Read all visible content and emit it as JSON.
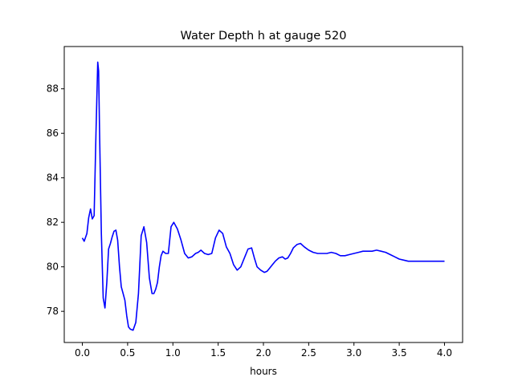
{
  "chart_data": {
    "type": "line",
    "title": "Water Depth h at gauge 520",
    "xlabel": "hours",
    "ylabel": "",
    "xlim": [
      -0.2,
      4.2
    ],
    "ylim": [
      76.6,
      89.9
    ],
    "x_ticks": [
      0.0,
      0.5,
      1.0,
      1.5,
      2.0,
      2.5,
      3.0,
      3.5,
      4.0
    ],
    "x_tick_labels": [
      "0.0",
      "0.5",
      "1.0",
      "1.5",
      "2.0",
      "2.5",
      "3.0",
      "3.5",
      "4.0"
    ],
    "y_ticks": [
      78,
      80,
      82,
      84,
      86,
      88
    ],
    "y_tick_labels": [
      "78",
      "80",
      "82",
      "84",
      "86",
      "88"
    ],
    "grid": false,
    "legend": "none",
    "series": [
      {
        "color": "#0000ff",
        "x": [
          0.0,
          0.02,
          0.05,
          0.07,
          0.09,
          0.11,
          0.13,
          0.15,
          0.17,
          0.18,
          0.19,
          0.21,
          0.23,
          0.25,
          0.27,
          0.29,
          0.31,
          0.33,
          0.35,
          0.37,
          0.39,
          0.41,
          0.43,
          0.45,
          0.47,
          0.49,
          0.51,
          0.53,
          0.56,
          0.59,
          0.62,
          0.65,
          0.68,
          0.71,
          0.74,
          0.77,
          0.79,
          0.81,
          0.83,
          0.85,
          0.87,
          0.89,
          0.92,
          0.95,
          0.98,
          1.01,
          1.05,
          1.09,
          1.13,
          1.17,
          1.21,
          1.25,
          1.28,
          1.31,
          1.35,
          1.39,
          1.43,
          1.47,
          1.51,
          1.55,
          1.59,
          1.63,
          1.67,
          1.71,
          1.75,
          1.79,
          1.83,
          1.87,
          1.9,
          1.93,
          1.97,
          2.01,
          2.04,
          2.07,
          2.1,
          2.13,
          2.17,
          2.21,
          2.24,
          2.27,
          2.3,
          2.33,
          2.37,
          2.41,
          2.45,
          2.5,
          2.55,
          2.6,
          2.65,
          2.7,
          2.75,
          2.8,
          2.85,
          2.9,
          2.95,
          3.0,
          3.05,
          3.1,
          3.15,
          3.2,
          3.25,
          3.3,
          3.35,
          3.4,
          3.45,
          3.5,
          3.55,
          3.6,
          3.65,
          3.7,
          3.75,
          3.8,
          3.85,
          3.9,
          3.95,
          4.0
        ],
        "y": [
          81.3,
          81.15,
          81.5,
          82.2,
          82.6,
          82.15,
          82.3,
          86.0,
          89.2,
          88.8,
          86.0,
          81.5,
          78.6,
          78.15,
          79.3,
          80.8,
          81.05,
          81.35,
          81.6,
          81.65,
          81.2,
          80.0,
          79.1,
          78.8,
          78.5,
          77.8,
          77.3,
          77.2,
          77.15,
          77.5,
          78.8,
          81.4,
          81.8,
          81.1,
          79.5,
          78.8,
          78.8,
          79.0,
          79.3,
          80.0,
          80.5,
          80.7,
          80.6,
          80.6,
          81.8,
          82.0,
          81.7,
          81.2,
          80.6,
          80.4,
          80.45,
          80.6,
          80.65,
          80.75,
          80.6,
          80.55,
          80.6,
          81.3,
          81.65,
          81.5,
          80.9,
          80.6,
          80.1,
          79.85,
          80.0,
          80.4,
          80.8,
          80.85,
          80.4,
          80.0,
          79.85,
          79.75,
          79.8,
          79.95,
          80.1,
          80.25,
          80.4,
          80.45,
          80.35,
          80.4,
          80.6,
          80.85,
          81.0,
          81.05,
          80.9,
          80.75,
          80.65,
          80.6,
          80.6,
          80.6,
          80.65,
          80.6,
          80.5,
          80.5,
          80.55,
          80.6,
          80.65,
          80.7,
          80.7,
          80.7,
          80.75,
          80.7,
          80.65,
          80.55,
          80.45,
          80.35,
          80.3,
          80.25,
          80.25,
          80.25,
          80.25,
          80.25,
          80.25,
          80.25,
          80.25,
          80.25
        ]
      }
    ]
  }
}
